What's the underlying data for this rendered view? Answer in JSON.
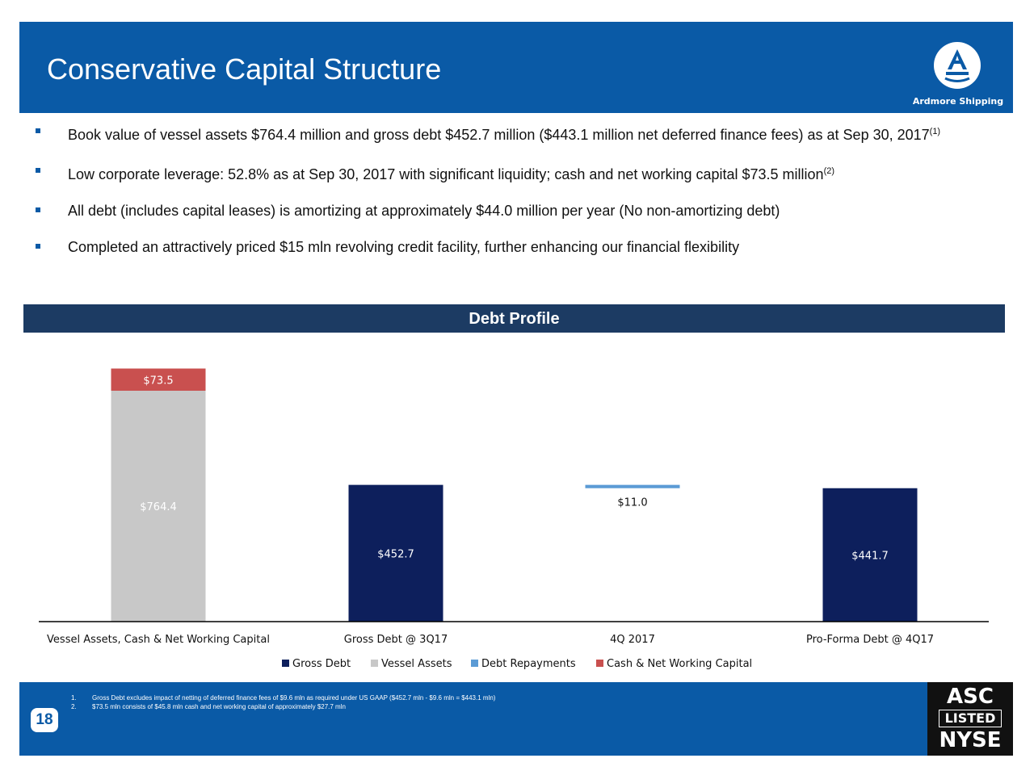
{
  "header": {
    "title": "Conservative Capital Structure",
    "logo_text": "Ardmore Shipping"
  },
  "bullets": [
    {
      "text": "Book value of vessel assets $764.4 million and gross debt $452.7 million ($443.1 million net deferred finance fees) as at Sep 30, 2017",
      "sup": "(1)"
    },
    {
      "text": "Low corporate leverage: 52.8% as at Sep 30, 2017 with significant liquidity; cash and net working capital $73.5 million",
      "sup": "(2)"
    },
    {
      "text": "All debt (includes capital leases) is amortizing at approximately $44.0 million per year (No non-amortizing debt)",
      "sup": ""
    },
    {
      "text": "Completed an attractively priced $15 mln revolving credit facility, further enhancing our financial flexibility",
      "sup": ""
    }
  ],
  "section_title": "Debt Profile",
  "chart_data": {
    "type": "bar",
    "stacked": true,
    "waterfall": true,
    "categories": [
      "Vessel Assets, Cash & Net Working Capital",
      "Gross Debt @ 3Q17",
      "4Q 2017",
      "Pro-Forma Debt @ 4Q17"
    ],
    "series": [
      {
        "name": "Gross Debt",
        "color": "#0d1f5c",
        "values": [
          null,
          452.7,
          null,
          441.7
        ],
        "labels": [
          "",
          "$452.7",
          "",
          "$441.7"
        ]
      },
      {
        "name": "Vessel Assets",
        "color": "#c8c8c8",
        "values": [
          764.4,
          null,
          null,
          null
        ],
        "labels": [
          "$764.4",
          "",
          "",
          ""
        ]
      },
      {
        "name": "Debt Repayments",
        "color": "#5b9bd5",
        "values": [
          null,
          null,
          11.0,
          null
        ],
        "labels": [
          "",
          "",
          "$11.0",
          ""
        ]
      },
      {
        "name": "Cash & Net Working Capital",
        "color": "#c9504f",
        "values": [
          73.5,
          null,
          null,
          null
        ],
        "labels": [
          "$73.5",
          "",
          "",
          ""
        ]
      }
    ],
    "legend_position": "bottom"
  },
  "footnotes": [
    {
      "num": "1.",
      "text": "Gross Debt excludes impact of netting of deferred finance fees of $9.6 mln as required under US GAAP ($452.7 mln - $9.6 mln = $443.1 mln)"
    },
    {
      "num": "2.",
      "text": "$73.5 mln consists of $45.8 mln cash and net working capital of approximately $27.7 mln"
    }
  ],
  "page_number": "18",
  "badge": {
    "line1": "ASC",
    "line2": "LISTED",
    "line3": "NYSE"
  }
}
